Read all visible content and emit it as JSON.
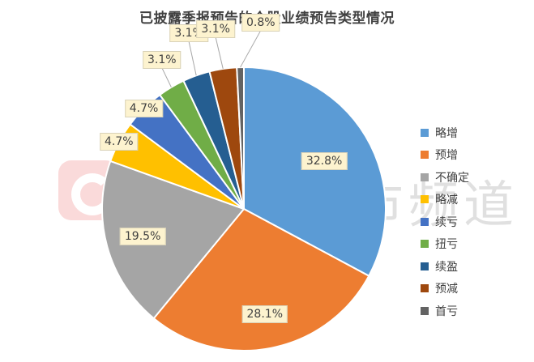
{
  "chart_data": {
    "type": "pie",
    "title": "已披露季报预告的个股业绩预告类型情况",
    "labels": [
      "略增",
      "预增",
      "不确定",
      "略减",
      "续亏",
      "扭亏",
      "续盈",
      "预减",
      "首亏"
    ],
    "values": [
      32.8,
      28.1,
      19.5,
      4.7,
      4.7,
      3.1,
      3.1,
      3.1,
      0.8
    ],
    "value_labels": [
      "32.8%",
      "28.1%",
      "19.5%",
      "4.7%",
      "4.7%",
      "3.1%",
      "3.1%",
      "3.1%",
      "0.8%"
    ],
    "colors": [
      "#5b9bd5",
      "#ed7d31",
      "#a5a5a5",
      "#ffc000",
      "#4472c4",
      "#70ad47",
      "#255e91",
      "#9e480e",
      "#636363"
    ],
    "legend_position": "right"
  },
  "watermark": {
    "text": "财联社股市频道",
    "logo_color": "#e52222"
  }
}
